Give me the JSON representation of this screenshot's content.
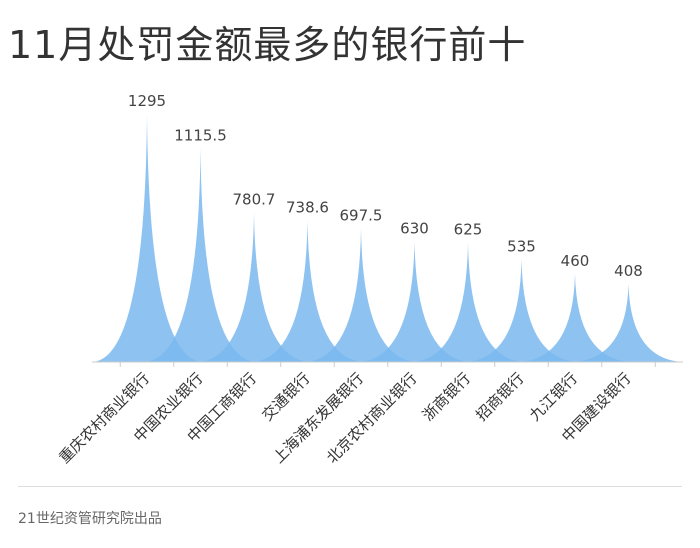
{
  "title": "11月处罚金额最多的银行前十",
  "source": "21世纪资管研究院出品",
  "chart_data": {
    "type": "area",
    "title": "11月处罚金额最多的银行前十",
    "categories": [
      "重庆农村商业银行",
      "中国农业银行",
      "中国工商银行",
      "交通银行",
      "上海浦东发展银行",
      "北京农村商业银行",
      "浙商银行",
      "招商银行",
      "九江银行",
      "中国建设银行"
    ],
    "values": [
      1295,
      1115.5,
      780.7,
      738.6,
      697.5,
      630,
      625,
      535,
      460,
      408
    ],
    "value_labels": [
      "1295",
      "1115.5",
      "780.7",
      "738.6",
      "697.5",
      "630",
      "625",
      "535",
      "460",
      "408"
    ],
    "ylim": [
      0,
      1295
    ],
    "grid": false,
    "legend": "none",
    "colors": {
      "fill": "#7ab8ef",
      "axis": "#cccccc"
    }
  }
}
